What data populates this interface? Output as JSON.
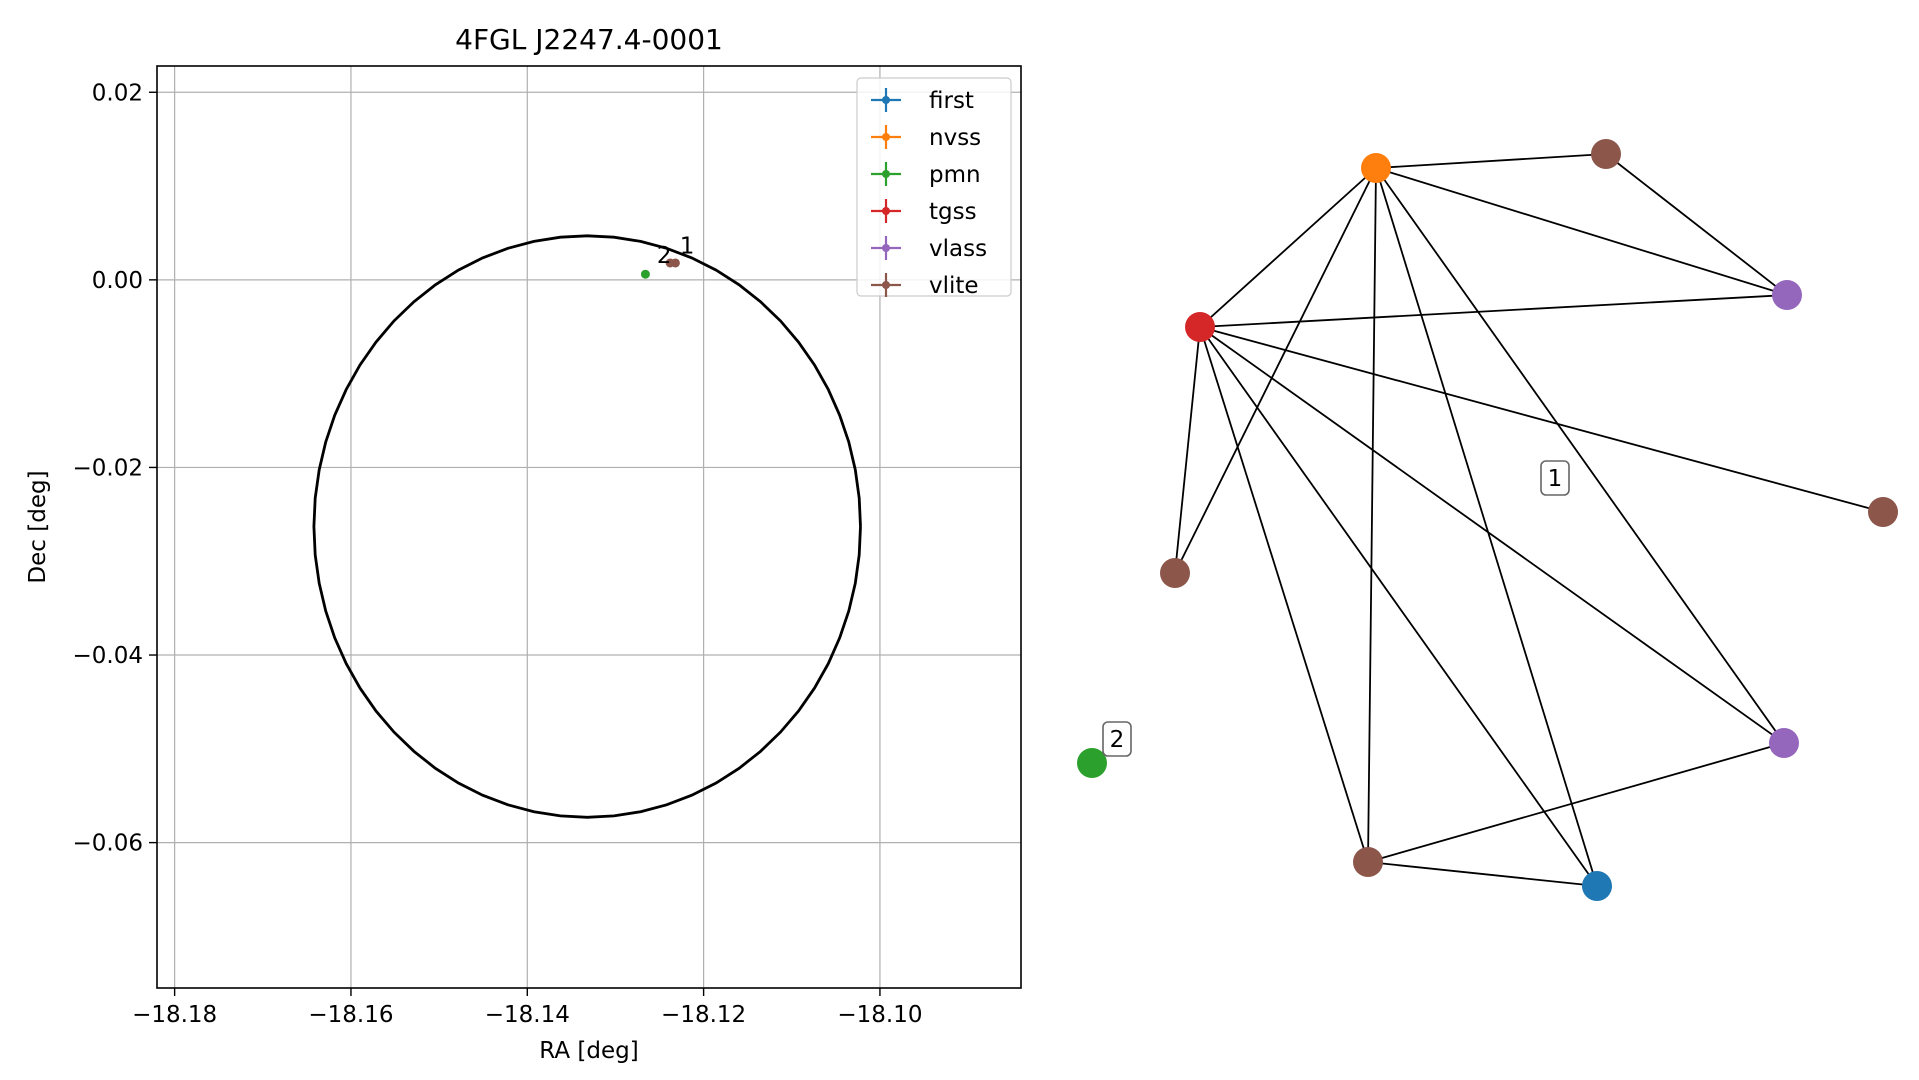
{
  "chart_data": [
    {
      "type": "scatter",
      "title": "4FGL J2247.4-0001",
      "xlabel": "RA [deg]",
      "ylabel": "Dec [deg]",
      "xlim": [
        -18.182,
        -18.084
      ],
      "ylim": [
        -0.0755,
        0.0228
      ],
      "xticks": [
        -18.18,
        -18.16,
        -18.14,
        -18.12,
        -18.1
      ],
      "xtick_labels": [
        "−18.18",
        "−18.16",
        "−18.14",
        "−18.12",
        "−18.10"
      ],
      "yticks": [
        0.02,
        0.0,
        -0.02,
        -0.04,
        -0.06
      ],
      "ytick_labels": [
        "0.02",
        "0.00",
        "−0.02",
        "−0.04",
        "−0.06"
      ],
      "grid": true,
      "legend_position": "top-right",
      "legend": [
        {
          "label": "first",
          "color": "#1f77b4"
        },
        {
          "label": "nvss",
          "color": "#ff7f0e"
        },
        {
          "label": "pmn",
          "color": "#2ca02c"
        },
        {
          "label": "tgss",
          "color": "#d62728"
        },
        {
          "label": "vlass",
          "color": "#9467bd"
        },
        {
          "label": "vlite",
          "color": "#8c564b"
        }
      ],
      "circle": {
        "center": [
          -18.1332,
          -0.0263
        ],
        "radius": 0.031,
        "color": "#000000"
      },
      "points": [
        {
          "survey": "vlite",
          "x": -18.1238,
          "y": 0.0018,
          "color": "#8c564b"
        },
        {
          "survey": "vlite",
          "x": -18.1232,
          "y": 0.0018,
          "color": "#8c564b"
        },
        {
          "survey": "pmn",
          "x": -18.1266,
          "y": 0.0006,
          "color": "#2ca02c"
        }
      ],
      "annotations": [
        {
          "text": "1",
          "x": -18.1227,
          "y": 0.0028
        },
        {
          "text": "2",
          "x": -18.1253,
          "y": 0.0018
        }
      ]
    },
    {
      "type": "network",
      "nodes": [
        {
          "id": 0,
          "survey": "nvss",
          "color": "#ff7f0e"
        },
        {
          "id": 1,
          "survey": "vlite",
          "color": "#8c564b"
        },
        {
          "id": 2,
          "survey": "vlass",
          "color": "#9467bd"
        },
        {
          "id": 3,
          "survey": "tgss",
          "color": "#d62728"
        },
        {
          "id": 4,
          "survey": "vlite",
          "color": "#8c564b"
        },
        {
          "id": 5,
          "survey": "vlite",
          "color": "#8c564b"
        },
        {
          "id": 6,
          "survey": "pmn",
          "color": "#2ca02c"
        },
        {
          "id": 7,
          "survey": "vlass",
          "color": "#9467bd"
        },
        {
          "id": 8,
          "survey": "vlite",
          "color": "#8c564b"
        },
        {
          "id": 9,
          "survey": "first",
          "color": "#1f77b4"
        }
      ],
      "edges": [
        [
          0,
          1
        ],
        [
          0,
          2
        ],
        [
          0,
          3
        ],
        [
          0,
          5
        ],
        [
          0,
          8
        ],
        [
          0,
          9
        ],
        [
          0,
          7
        ],
        [
          1,
          2
        ],
        [
          3,
          2
        ],
        [
          3,
          4
        ],
        [
          3,
          5
        ],
        [
          3,
          7
        ],
        [
          3,
          8
        ],
        [
          3,
          9
        ],
        [
          8,
          9
        ],
        [
          8,
          7
        ]
      ],
      "component_labels": [
        {
          "text": "1"
        },
        {
          "text": "2"
        }
      ]
    }
  ]
}
